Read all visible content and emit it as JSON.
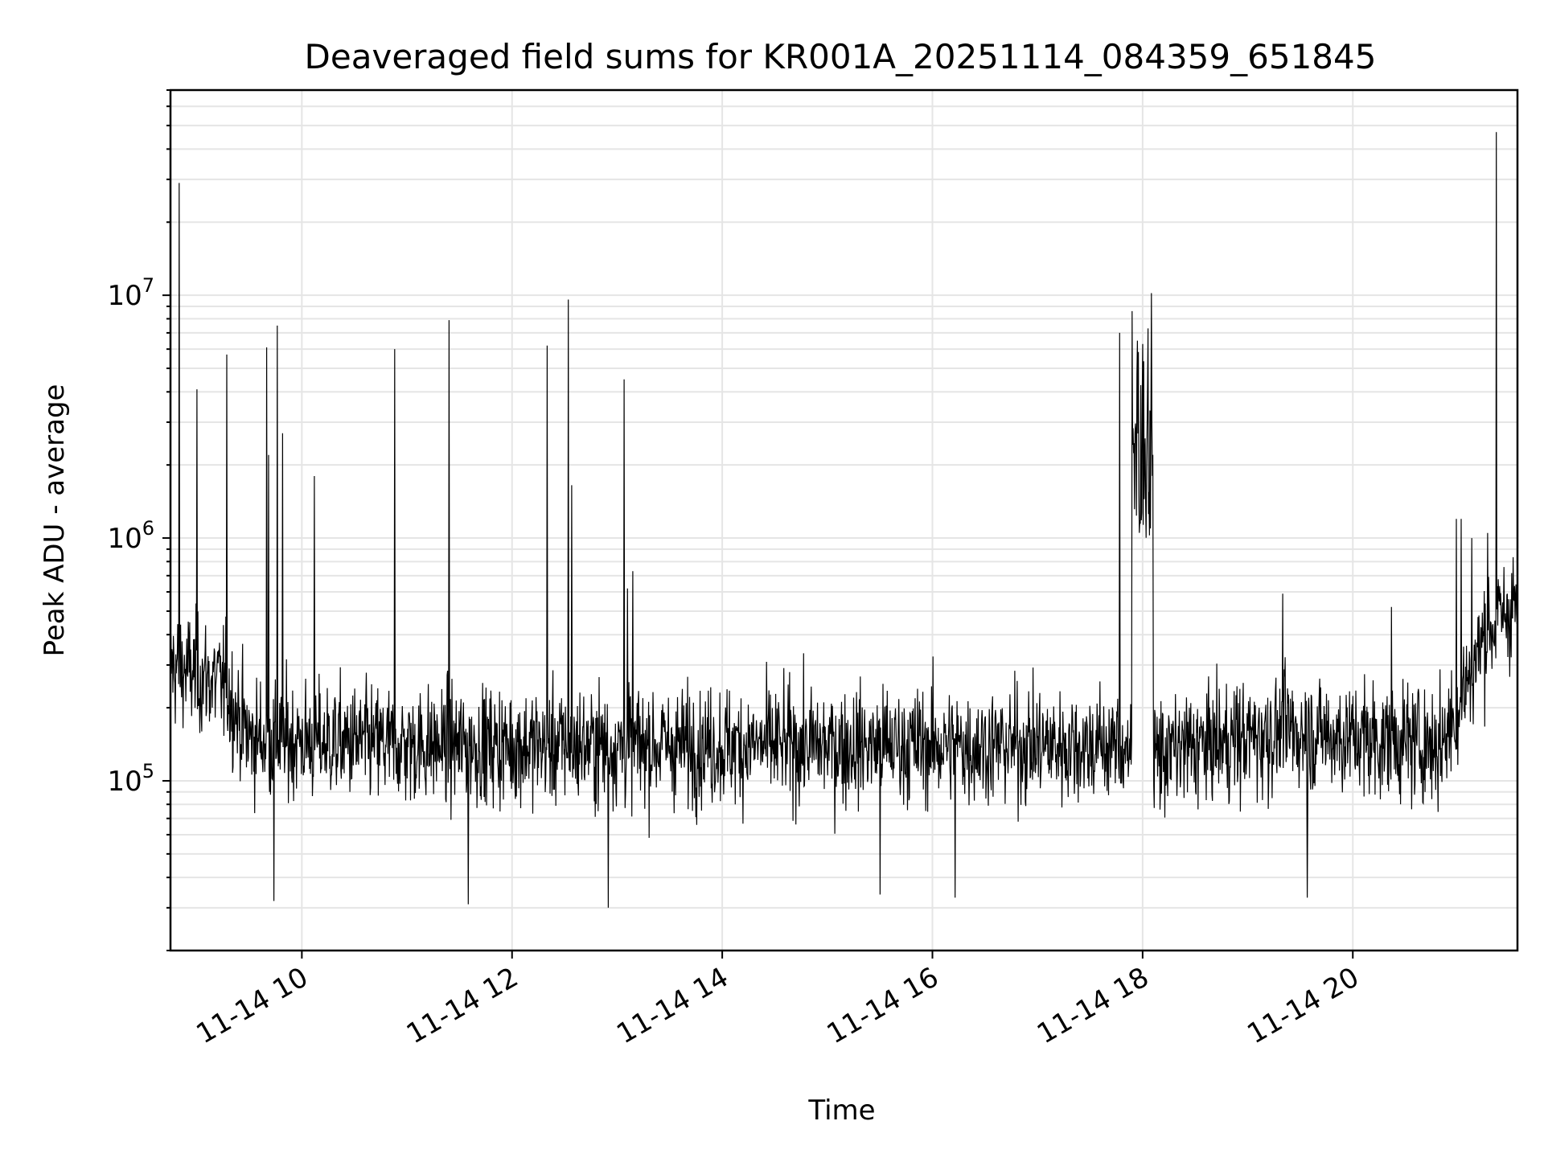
{
  "chart_data": {
    "type": "line",
    "title": "Deaveraged field sums for KR001A_20251114_084359_651845",
    "xlabel": "Time",
    "ylabel": "Peak ADU - average",
    "xscale": "time",
    "yscale": "log",
    "xlim": [
      "2025-11-14 08:45",
      "2025-11-14 21:34"
    ],
    "ylim": [
      20000,
      70000000
    ],
    "grid": true,
    "line_color": "#000000",
    "grid_color": "#e5e5e5",
    "x_ticks": [
      {
        "value": "2025-11-14 10:00",
        "label": "11-14 10"
      },
      {
        "value": "2025-11-14 12:00",
        "label": "11-14 12"
      },
      {
        "value": "2025-11-14 14:00",
        "label": "11-14 14"
      },
      {
        "value": "2025-11-14 16:00",
        "label": "11-14 16"
      },
      {
        "value": "2025-11-14 18:00",
        "label": "11-14 18"
      },
      {
        "value": "2025-11-14 20:00",
        "label": "11-14 20"
      }
    ],
    "y_ticks": [
      {
        "value": 100000,
        "base": "10",
        "exp": "5"
      },
      {
        "value": 1000000,
        "base": "10",
        "exp": "6"
      },
      {
        "value": 10000000,
        "base": "10",
        "exp": "7"
      }
    ],
    "series": [
      {
        "baseline": [
          {
            "x": "2025-11-14 08:45",
            "y": 300000
          },
          {
            "x": "2025-11-14 09:15",
            "y": 250000
          },
          {
            "x": "2025-11-14 09:30",
            "y": 150000
          },
          {
            "x": "2025-11-14 11:00",
            "y": 140000
          },
          {
            "x": "2025-11-14 14:00",
            "y": 140000
          },
          {
            "x": "2025-11-14 17:50",
            "y": 140000
          },
          {
            "x": "2025-11-14 18:10",
            "y": 130000
          },
          {
            "x": "2025-11-14 19:20",
            "y": 160000
          },
          {
            "x": "2025-11-14 20:50",
            "y": 140000
          },
          {
            "x": "2025-11-14 21:00",
            "y": 200000
          },
          {
            "x": "2025-11-14 21:15",
            "y": 400000
          },
          {
            "x": "2025-11-14 21:34",
            "y": 550000
          }
        ],
        "spikes": [
          {
            "x": "2025-11-14 08:50",
            "y": 29000000
          },
          {
            "x": "2025-11-14 09:00",
            "y": 4100000
          },
          {
            "x": "2025-11-14 09:17",
            "y": 5700000
          },
          {
            "x": "2025-11-14 09:40",
            "y": 6100000
          },
          {
            "x": "2025-11-14 09:41",
            "y": 2200000
          },
          {
            "x": "2025-11-14 09:46",
            "y": 7500000
          },
          {
            "x": "2025-11-14 09:49",
            "y": 2700000
          },
          {
            "x": "2025-11-14 10:07",
            "y": 1800000
          },
          {
            "x": "2025-11-14 10:53",
            "y": 6000000
          },
          {
            "x": "2025-11-14 11:24",
            "y": 7900000
          },
          {
            "x": "2025-11-14 12:20",
            "y": 6200000
          },
          {
            "x": "2025-11-14 12:32",
            "y": 9600000
          },
          {
            "x": "2025-11-14 12:34",
            "y": 1650000
          },
          {
            "x": "2025-11-14 13:04",
            "y": 4500000
          },
          {
            "x": "2025-11-14 13:06",
            "y": 620000
          },
          {
            "x": "2025-11-14 13:09",
            "y": 730000
          },
          {
            "x": "2025-11-14 17:47",
            "y": 7000000
          },
          {
            "x": "2025-11-14 17:54",
            "y": 8600000
          },
          {
            "x": "2025-11-14 17:57",
            "y": 6500000
          },
          {
            "x": "2025-11-14 18:00",
            "y": 6300000
          },
          {
            "x": "2025-11-14 18:03",
            "y": 7300000
          },
          {
            "x": "2025-11-14 18:05",
            "y": 10200000
          },
          {
            "x": "2025-11-14 19:20",
            "y": 590000
          },
          {
            "x": "2025-11-14 20:22",
            "y": 520000
          },
          {
            "x": "2025-11-14 20:59",
            "y": 1200000
          },
          {
            "x": "2025-11-14 21:02",
            "y": 1200000
          },
          {
            "x": "2025-11-14 21:08",
            "y": 1000000
          },
          {
            "x": "2025-11-14 21:17",
            "y": 1050000
          },
          {
            "x": "2025-11-14 21:22",
            "y": 47000000
          }
        ],
        "dips": [
          {
            "x": "2025-11-14 09:44",
            "y": 32000
          },
          {
            "x": "2025-11-14 11:35",
            "y": 31000
          },
          {
            "x": "2025-11-14 12:55",
            "y": 30000
          },
          {
            "x": "2025-11-14 15:30",
            "y": 34000
          },
          {
            "x": "2025-11-14 16:13",
            "y": 33000
          },
          {
            "x": "2025-11-14 19:34",
            "y": 33000
          }
        ],
        "plateaus": [
          {
            "x_start": "2025-11-14 17:54",
            "x_end": "2025-11-14 18:06",
            "y_low": 1000000,
            "y_high": 6000000
          }
        ]
      }
    ]
  }
}
